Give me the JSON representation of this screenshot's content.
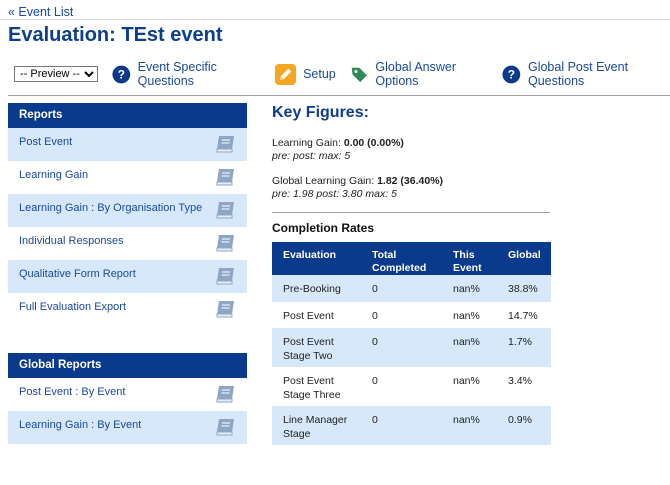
{
  "nav": {
    "back_label": "« Event List"
  },
  "page": {
    "title": "Evaluation: TEst event"
  },
  "toolbar": {
    "preview_selected": "-- Preview --",
    "items": [
      {
        "label": "Event Specific Questions",
        "icon": "help-circle-icon"
      },
      {
        "label": "Setup",
        "icon": "pencil-icon"
      },
      {
        "label": "Global Answer Options",
        "icon": "tag-icon"
      },
      {
        "label": "Global Post Event Questions",
        "icon": "help-circle-icon"
      }
    ]
  },
  "reports": {
    "heading": "Reports",
    "items": [
      {
        "label": "Post Event"
      },
      {
        "label": "Learning Gain"
      },
      {
        "label": "Learning Gain : By Organisation Type"
      },
      {
        "label": "Individual Responses"
      },
      {
        "label": "Qualitative Form Report"
      },
      {
        "label": "Full Evaluation Export"
      }
    ]
  },
  "global_reports": {
    "heading": "Global Reports",
    "items": [
      {
        "label": "Post Event : By Event"
      },
      {
        "label": "Learning Gain : By Event"
      }
    ]
  },
  "key_figures": {
    "title": "Key Figures:",
    "learning_gain": {
      "label": "Learning Gain:",
      "value": "0.00 (0.00%)",
      "detail": "pre: post: max: 5"
    },
    "global_learning_gain": {
      "label": "Global Learning Gain:",
      "value": "1.82 (36.40%)",
      "detail": "pre: 1.98 post: 3.80 max: 5"
    }
  },
  "completion": {
    "title": "Completion Rates",
    "headers": [
      "Evaluation",
      "Total Completed",
      "This Event",
      "Global"
    ],
    "rows": [
      [
        "Pre-Booking",
        "0",
        "nan%",
        "38.8%"
      ],
      [
        "Post Event",
        "0",
        "nan%",
        "14.7%"
      ],
      [
        "Post Event Stage Two",
        "0",
        "nan%",
        "1.7%"
      ],
      [
        "Post Event Stage Three",
        "0",
        "nan%",
        "3.4%"
      ],
      [
        "Line Manager Stage",
        "0",
        "nan%",
        "0.9%"
      ]
    ]
  },
  "colors": {
    "brand_blue": "#0a3a8c",
    "link_blue": "#1a4aa0",
    "row_alt": "#d6e8f9",
    "setup_orange": "#f5a623",
    "tag_green": "#2e8b57"
  }
}
